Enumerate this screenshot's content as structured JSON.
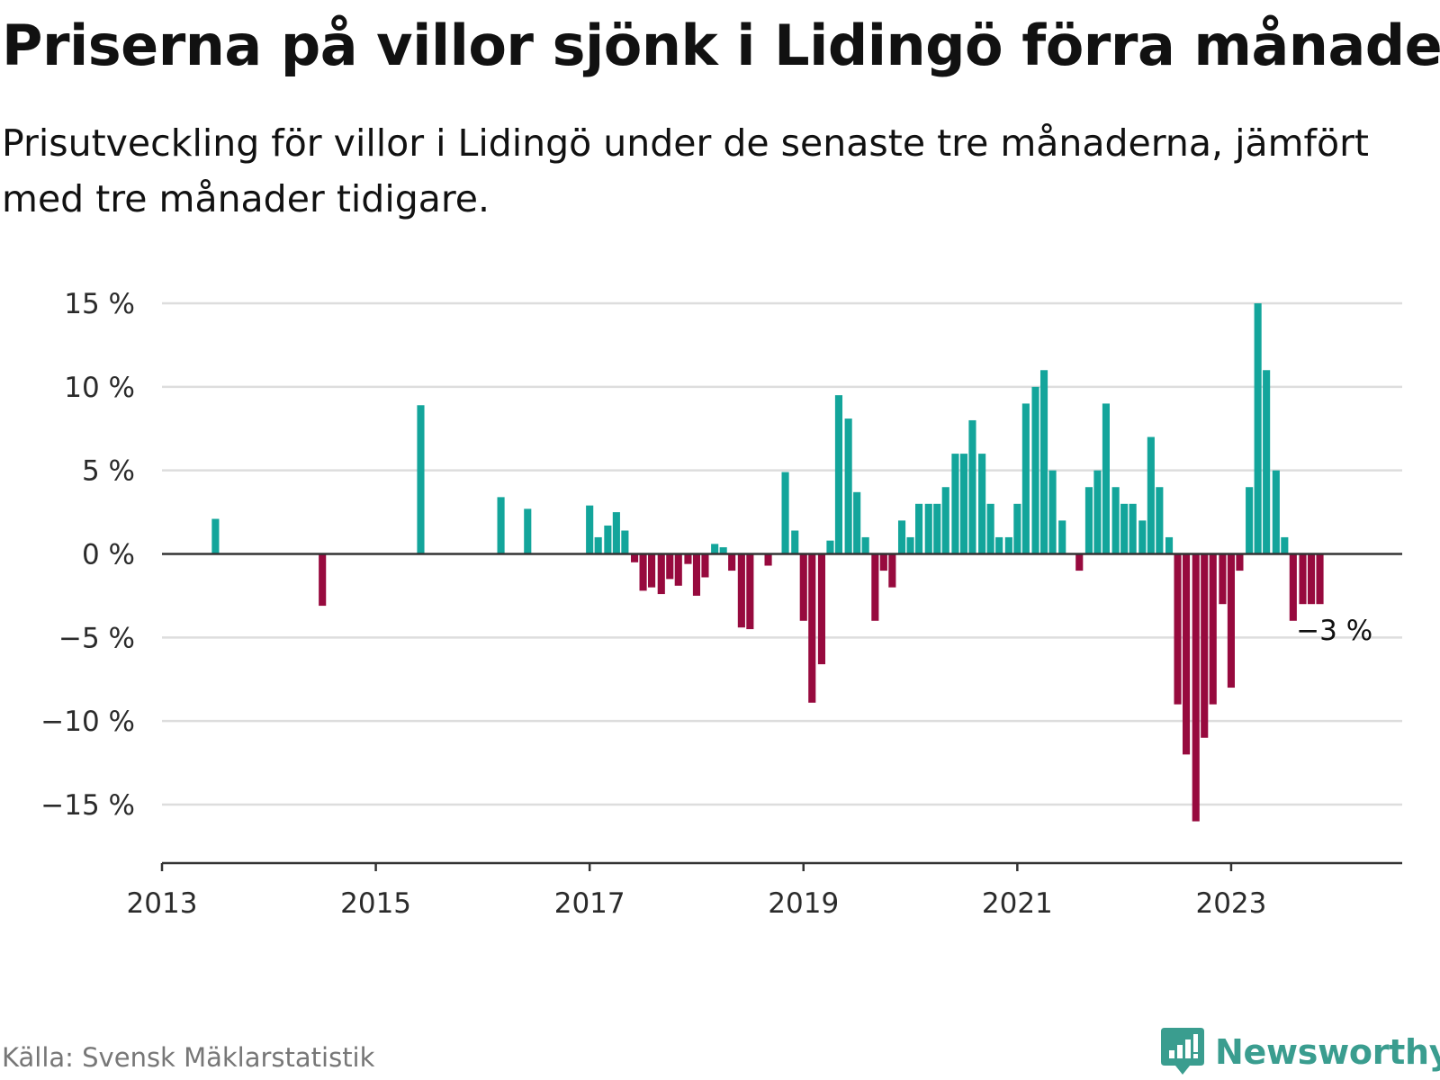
{
  "title": "Priserna på villor sjönk i Lidingö förra månaden",
  "subtitle": "Prisutveckling för villor i Lidingö under de senaste tre månaderna, jämfört med tre månader tidigare.",
  "source": "Källa: Svensk Mäklarstatistik",
  "brand": "Newsworthy",
  "colors": {
    "positive": "#13a59b",
    "negative": "#970a3e",
    "grid": "#dddddd",
    "axis": "#333333",
    "brand": "#3a9d8f"
  },
  "chart_data": {
    "type": "bar",
    "title": "Priserna på villor sjönk i Lidingö förra månaden",
    "xlabel": "",
    "ylabel": "",
    "ylim": [
      -18.5,
      15
    ],
    "yticks": [
      15,
      10,
      5,
      0,
      -5,
      -10,
      -15
    ],
    "ytick_labels": [
      "15 %",
      "10 %",
      "5 %",
      "0 %",
      "−5 %",
      "−10 %",
      "−15 %"
    ],
    "xlim": [
      2013,
      2024.6
    ],
    "xticks": [
      2013,
      2015,
      2017,
      2019,
      2021,
      2023
    ],
    "xtick_labels": [
      "2013",
      "2015",
      "2017",
      "2019",
      "2021",
      "2023"
    ],
    "annotation": {
      "text": "−3 %",
      "x": 2023.92,
      "y": -3
    },
    "series": [
      {
        "name": "Prisutveckling",
        "points": [
          {
            "x": 2013.5,
            "y": 2.1
          },
          {
            "x": 2014.5,
            "y": -3.1
          },
          {
            "x": 2015.42,
            "y": 8.9
          },
          {
            "x": 2016.17,
            "y": 3.4
          },
          {
            "x": 2016.42,
            "y": 2.7
          },
          {
            "x": 2017.0,
            "y": 2.9
          },
          {
            "x": 2017.08,
            "y": 1.0
          },
          {
            "x": 2017.17,
            "y": 1.7
          },
          {
            "x": 2017.25,
            "y": 2.5
          },
          {
            "x": 2017.33,
            "y": 1.4
          },
          {
            "x": 2017.42,
            "y": -0.5
          },
          {
            "x": 2017.5,
            "y": -2.2
          },
          {
            "x": 2017.58,
            "y": -2.0
          },
          {
            "x": 2017.67,
            "y": -2.4
          },
          {
            "x": 2017.75,
            "y": -1.5
          },
          {
            "x": 2017.83,
            "y": -1.9
          },
          {
            "x": 2017.92,
            "y": -0.6
          },
          {
            "x": 2018.0,
            "y": -2.5
          },
          {
            "x": 2018.08,
            "y": -1.4
          },
          {
            "x": 2018.17,
            "y": 0.6
          },
          {
            "x": 2018.25,
            "y": 0.4
          },
          {
            "x": 2018.33,
            "y": -1.0
          },
          {
            "x": 2018.42,
            "y": -4.4
          },
          {
            "x": 2018.5,
            "y": -4.5
          },
          {
            "x": 2018.67,
            "y": -0.7
          },
          {
            "x": 2018.83,
            "y": 4.9
          },
          {
            "x": 2018.92,
            "y": 1.4
          },
          {
            "x": 2019.0,
            "y": -4.0
          },
          {
            "x": 2019.08,
            "y": -8.9
          },
          {
            "x": 2019.17,
            "y": -6.6
          },
          {
            "x": 2019.25,
            "y": 0.8
          },
          {
            "x": 2019.33,
            "y": 9.5
          },
          {
            "x": 2019.42,
            "y": 8.1
          },
          {
            "x": 2019.5,
            "y": 3.7
          },
          {
            "x": 2019.58,
            "y": 1.0
          },
          {
            "x": 2019.67,
            "y": -4.0
          },
          {
            "x": 2019.75,
            "y": -1.0
          },
          {
            "x": 2019.83,
            "y": -2.0
          },
          {
            "x": 2019.92,
            "y": 2.0
          },
          {
            "x": 2020.0,
            "y": 1.0
          },
          {
            "x": 2020.08,
            "y": 3.0
          },
          {
            "x": 2020.17,
            "y": 3.0
          },
          {
            "x": 2020.25,
            "y": 3.0
          },
          {
            "x": 2020.33,
            "y": 4.0
          },
          {
            "x": 2020.42,
            "y": 6.0
          },
          {
            "x": 2020.5,
            "y": 6.0
          },
          {
            "x": 2020.58,
            "y": 8.0
          },
          {
            "x": 2020.67,
            "y": 6.0
          },
          {
            "x": 2020.75,
            "y": 3.0
          },
          {
            "x": 2020.83,
            "y": 1.0
          },
          {
            "x": 2020.92,
            "y": 1.0
          },
          {
            "x": 2021.0,
            "y": 3.0
          },
          {
            "x": 2021.08,
            "y": 9.0
          },
          {
            "x": 2021.17,
            "y": 10.0
          },
          {
            "x": 2021.25,
            "y": 11.0
          },
          {
            "x": 2021.33,
            "y": 5.0
          },
          {
            "x": 2021.42,
            "y": 2.0
          },
          {
            "x": 2021.58,
            "y": -1.0
          },
          {
            "x": 2021.67,
            "y": 4.0
          },
          {
            "x": 2021.75,
            "y": 5.0
          },
          {
            "x": 2021.83,
            "y": 9.0
          },
          {
            "x": 2021.92,
            "y": 4.0
          },
          {
            "x": 2022.0,
            "y": 3.0
          },
          {
            "x": 2022.08,
            "y": 3.0
          },
          {
            "x": 2022.17,
            "y": 2.0
          },
          {
            "x": 2022.25,
            "y": 7.0
          },
          {
            "x": 2022.33,
            "y": 4.0
          },
          {
            "x": 2022.42,
            "y": 1.0
          },
          {
            "x": 2022.5,
            "y": -9.0
          },
          {
            "x": 2022.58,
            "y": -12.0
          },
          {
            "x": 2022.67,
            "y": -16.0
          },
          {
            "x": 2022.75,
            "y": -11.0
          },
          {
            "x": 2022.83,
            "y": -9.0
          },
          {
            "x": 2022.92,
            "y": -3.0
          },
          {
            "x": 2023.0,
            "y": -8.0
          },
          {
            "x": 2023.08,
            "y": -1.0
          },
          {
            "x": 2023.17,
            "y": 4.0
          },
          {
            "x": 2023.25,
            "y": 15.0
          },
          {
            "x": 2023.33,
            "y": 11.0
          },
          {
            "x": 2023.42,
            "y": 5.0
          },
          {
            "x": 2023.5,
            "y": 1.0
          },
          {
            "x": 2023.58,
            "y": -4.0
          },
          {
            "x": 2023.67,
            "y": -3.0
          },
          {
            "x": 2023.75,
            "y": -3.0
          },
          {
            "x": 2023.83,
            "y": -3.0
          }
        ]
      }
    ]
  }
}
